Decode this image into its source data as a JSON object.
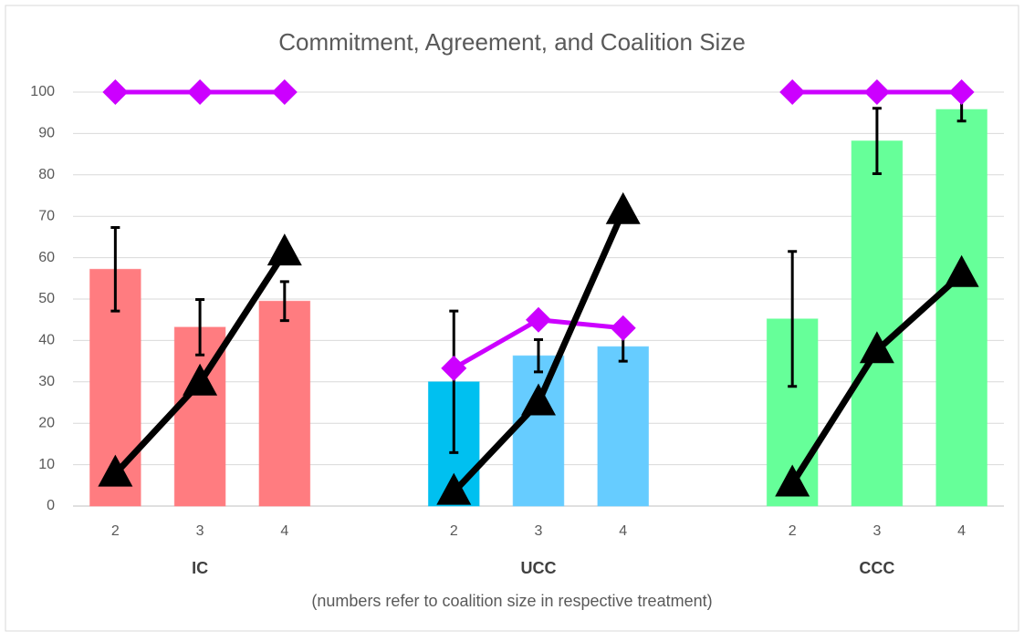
{
  "chart_data": {
    "type": "bar",
    "title": "Commitment,  Agreement, and Coalition Size",
    "x_label": "(numbers refer to coalition size in respective treatment)",
    "categories": [
      "2",
      "3",
      "4",
      null,
      "2",
      "3",
      "4",
      null,
      "2",
      "3",
      "4"
    ],
    "groups": [
      "IC",
      "UCC",
      "CCC"
    ],
    "ylim": [
      0,
      100
    ],
    "yticks": [
      0,
      10,
      20,
      30,
      40,
      50,
      60,
      70,
      80,
      90,
      100
    ],
    "grid": true,
    "series": [
      {
        "type": "bar",
        "colors": [
          "#ff7c80",
          "#ff7c80",
          "#ff7c80",
          null,
          "#00c0f0",
          "#66ccff",
          "#66ccff",
          null,
          "#66ff99",
          "#66ff99",
          "#66ff99"
        ],
        "values": [
          57.2,
          43.2,
          49.5,
          null,
          30,
          36.3,
          38.5,
          null,
          45.2,
          88.2,
          95.8
        ],
        "errors": [
          10.1,
          6.7,
          4.7,
          null,
          17.1,
          3.9,
          3.5,
          null,
          16.3,
          7.9,
          2.8
        ]
      },
      {
        "type": "line",
        "color": "#cc00ff",
        "marker": "diamond",
        "values": [
          100,
          100,
          100,
          null,
          33.3,
          45,
          43,
          null,
          100,
          100,
          100
        ]
      },
      {
        "type": "line",
        "color": "#000000",
        "marker": "triangle",
        "values": [
          7.8,
          29.8,
          61.2,
          null,
          3.4,
          25,
          71.2,
          null,
          5.4,
          37.6,
          56
        ]
      }
    ]
  }
}
